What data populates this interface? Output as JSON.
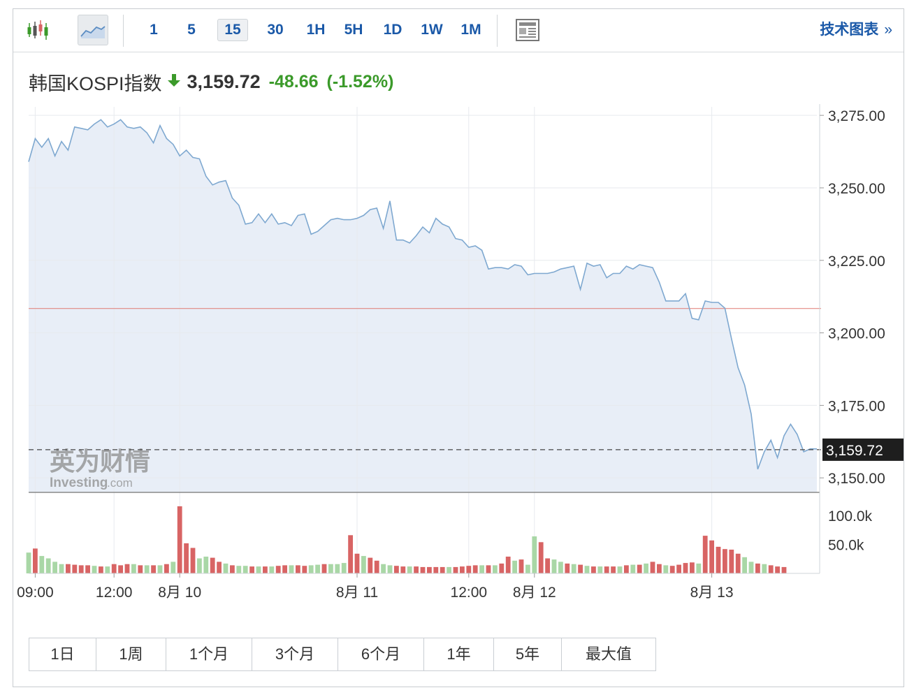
{
  "toolbar": {
    "chart_type_icons": [
      "candlestick-icon",
      "area-chart-icon"
    ],
    "intervals": [
      {
        "label": "1",
        "active": false
      },
      {
        "label": "5",
        "active": false
      },
      {
        "label": "15",
        "active": true
      },
      {
        "label": "30",
        "active": false
      },
      {
        "label": "1H",
        "active": false
      },
      {
        "label": "5H",
        "active": false
      },
      {
        "label": "1D",
        "active": false
      },
      {
        "label": "1W",
        "active": false
      },
      {
        "label": "1M",
        "active": false
      }
    ],
    "news_icon": "news-icon",
    "tech_chart_label": "技术图表",
    "tech_chart_chevron": "»"
  },
  "header": {
    "instrument": "韩国KOSPI指数",
    "last_price": "3,159.72",
    "change": "-48.66",
    "change_pct": "(-1.52%)",
    "direction_icon": "down-arrow-icon"
  },
  "watermark": {
    "brand_cn": "英为财情",
    "brand_en": "Investing",
    "brand_suffix": ".com"
  },
  "range_buttons": [
    "1日",
    "1周",
    "1个月",
    "3个月",
    "6个月",
    "1年",
    "5年",
    "最大值"
  ],
  "colors": {
    "line": "#7ea8d0",
    "area_fill": "#e8eef7",
    "prev_close_line": "#e07a72",
    "vol_up": "#a9d7a6",
    "vol_down": "#d86464",
    "accent": "#1b59a8",
    "positive": "#3b9a2a",
    "price_tag_bg": "#1e1e1e"
  },
  "chart_data": {
    "type": "area",
    "title": "韩国KOSPI指数",
    "interval": "15",
    "ylim": [
      3145,
      3276
    ],
    "y_ticks": [
      "3,275.00",
      "3,250.00",
      "3,225.00",
      "3,200.00",
      "3,175.00",
      "3,150.00"
    ],
    "y_tick_values": [
      3275,
      3250,
      3225,
      3200,
      3175,
      3150
    ],
    "previous_close": 3208.38,
    "last_value": 3159.72,
    "last_value_label": "3,159.72",
    "x_labels": [
      {
        "label": "09:00",
        "index": 1
      },
      {
        "label": "12:00",
        "index": 13
      },
      {
        "label": "8月 10",
        "index": 23
      },
      {
        "label": "8月 11",
        "index": 50
      },
      {
        "label": "12:00",
        "index": 67
      },
      {
        "label": "8月 12",
        "index": 77
      },
      {
        "label": "8月 13",
        "index": 104
      }
    ],
    "series": [
      {
        "values": [
          3259,
          3267,
          3264,
          3267,
          3261,
          3266,
          3263,
          3271,
          3270.5,
          3270,
          3272,
          3273.5,
          3271,
          3272,
          3273.5,
          3271,
          3270.5,
          3271,
          3269,
          3265.5,
          3271.5,
          3267,
          3265,
          3261,
          3263,
          3260.5,
          3260,
          3254,
          3251,
          3252,
          3252.5,
          3246.5,
          3244,
          3237.5,
          3238,
          3241,
          3238,
          3241,
          3237.5,
          3238,
          3237,
          3240.5,
          3241,
          3234,
          3235,
          3237,
          3239,
          3239.5,
          3239,
          3239,
          3239.5,
          3240.5,
          3242.5,
          3243,
          3236,
          3245.5,
          3232,
          3232,
          3231,
          3233.5,
          3236.5,
          3234.5,
          3239.5,
          3237.5,
          3236.5,
          3232.5,
          3232,
          3229.5,
          3230,
          3228.5,
          3222,
          3222.5,
          3222.5,
          3222,
          3223.5,
          3223,
          3220,
          3220.5,
          3220.5,
          3220.5,
          3221,
          3222,
          3222.5,
          3223,
          3215,
          3224,
          3223,
          3223.5,
          3219,
          3220.5,
          3220.5,
          3223,
          3222,
          3223.5,
          3223,
          3222.5,
          3217.5,
          3211,
          3211,
          3211,
          3213.5,
          3205,
          3204.5,
          3211,
          3210.5,
          3210.5,
          3208.5,
          3198,
          3188,
          3182,
          3172,
          3153,
          3159,
          3163,
          3157,
          3164.5,
          3168.5,
          3165,
          3159,
          3160,
          3160
        ]
      }
    ],
    "volume": {
      "y_ticks": [
        "100.0k",
        "50.0k"
      ],
      "y_tick_values": [
        100000,
        50000
      ],
      "ylim": [
        0,
        140000
      ],
      "values": [
        36000,
        43000,
        30000,
        26000,
        20000,
        16000,
        16000,
        15000,
        14000,
        14000,
        13000,
        12000,
        12000,
        16000,
        14000,
        16000,
        16000,
        14000,
        14000,
        14000,
        14000,
        16000,
        20000,
        116000,
        52000,
        44000,
        26000,
        29000,
        27000,
        20000,
        17000,
        14000,
        13000,
        13000,
        12000,
        12000,
        12000,
        12000,
        13000,
        14000,
        14000,
        14000,
        13000,
        14000,
        15000,
        16000,
        16000,
        16000,
        18000,
        66000,
        34000,
        30000,
        27000,
        22000,
        16000,
        14000,
        13000,
        12000,
        12000,
        12000,
        11000,
        11000,
        11000,
        11000,
        11000,
        11000,
        12000,
        13000,
        14000,
        14000,
        14000,
        14000,
        17000,
        29000,
        22000,
        24000,
        15000,
        64000,
        54000,
        26000,
        24000,
        20000,
        17000,
        16000,
        15000,
        13000,
        12000,
        12000,
        12000,
        12000,
        12000,
        14000,
        15000,
        15000,
        17000,
        20000,
        16000,
        14000,
        13000,
        15000,
        18000,
        19000,
        17000,
        65000,
        57000,
        46000,
        42000,
        41000,
        34000,
        28000,
        20000,
        17000,
        16000,
        14000,
        12000,
        11000
      ],
      "direction": [
        "up",
        "down",
        "up",
        "up",
        "up",
        "up",
        "down",
        "down",
        "down",
        "down",
        "up",
        "down",
        "up",
        "down",
        "down",
        "down",
        "up",
        "down",
        "up",
        "down",
        "up",
        "down",
        "up",
        "down",
        "down",
        "down",
        "up",
        "up",
        "down",
        "down",
        "up",
        "down",
        "up",
        "up",
        "down",
        "up",
        "down",
        "up",
        "down",
        "down",
        "up",
        "down",
        "down",
        "up",
        "up",
        "down",
        "up",
        "up",
        "up",
        "down",
        "down",
        "up",
        "down",
        "down",
        "up",
        "up",
        "down",
        "down",
        "up",
        "down",
        "down",
        "down",
        "down",
        "down",
        "up",
        "down",
        "down",
        "down",
        "down",
        "up",
        "down",
        "up",
        "down",
        "down",
        "up",
        "down",
        "up",
        "up",
        "down",
        "down",
        "up",
        "up",
        "down",
        "up",
        "down",
        "up",
        "down",
        "up",
        "down",
        "down",
        "up",
        "down",
        "up",
        "down",
        "up",
        "down",
        "down",
        "up",
        "down",
        "down",
        "down",
        "down",
        "up",
        "down",
        "down",
        "down",
        "down",
        "down",
        "down",
        "up",
        "up",
        "down",
        "up",
        "down",
        "down",
        "down"
      ]
    }
  }
}
